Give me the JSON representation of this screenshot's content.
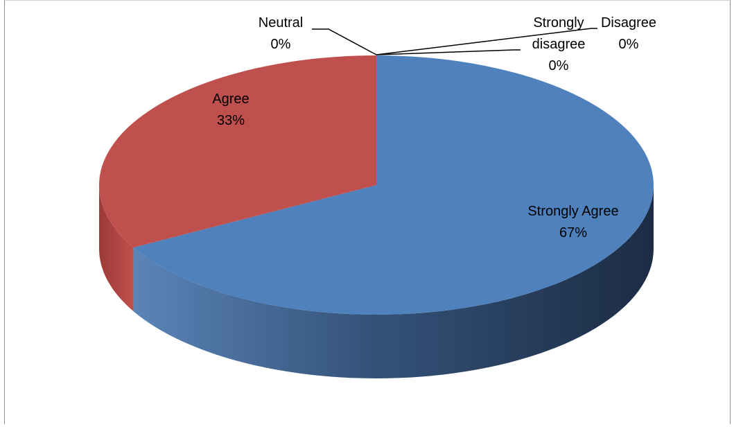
{
  "chart_data": {
    "type": "pie",
    "style": "3d",
    "title": "",
    "slices": [
      {
        "category": "Strongly Agree",
        "percent_label": "67%",
        "value": 67,
        "color": "#4f81bd"
      },
      {
        "category": "Agree",
        "percent_label": "33%",
        "value": 33,
        "color": "#c0504d"
      },
      {
        "category": "Neutral",
        "percent_label": "0%",
        "value": 0,
        "color": "#9bbb59"
      },
      {
        "category": "Disagree",
        "percent_label": "0%",
        "value": 0,
        "color": "#8064a2"
      },
      {
        "category": "Strongly disagree",
        "percent_label": "0%",
        "value": 0,
        "color": "#4bacc6"
      }
    ],
    "data_labels": "category and percent"
  }
}
